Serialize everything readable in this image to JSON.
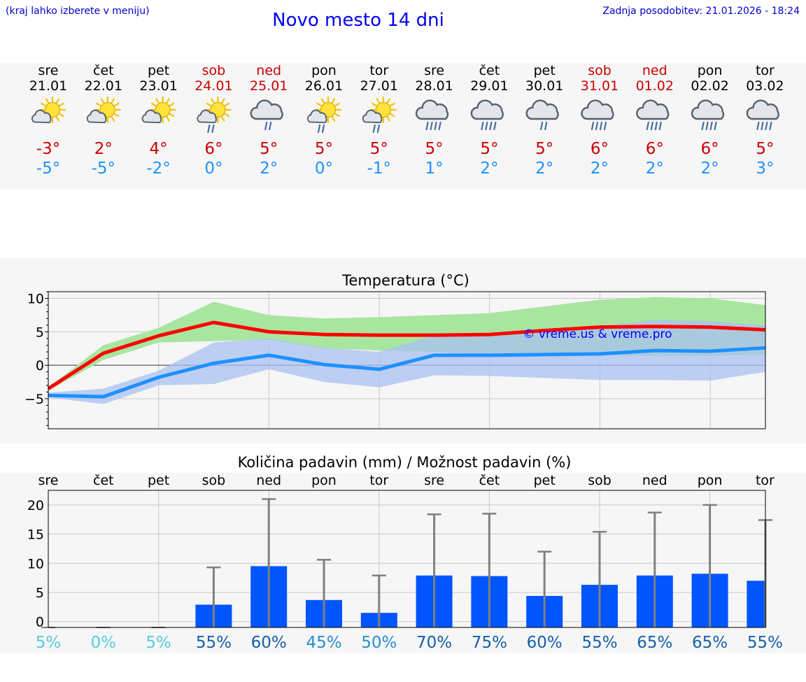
{
  "header": {
    "hint": "(kraj lahko izberete v meniju)",
    "title": "Novo mesto 14 dni",
    "updated": "Zadnja posodobitev: 21.01.2026 - 18:24"
  },
  "colors": {
    "weekday": "#000000",
    "weekend": "#cc0000",
    "tmax": "#cc0000",
    "tmin": "#1e90ff",
    "max_line": "#ff0000",
    "min_line": "#1e90ff",
    "max_band": "#a8e6a0",
    "min_band": "#a9c0f2",
    "overlap_band": "#7fc4a8",
    "bar": "#0055ff",
    "errbar": "#808080",
    "watermark": "#0000ff"
  },
  "days": [
    {
      "name": "sre",
      "date": "21.01",
      "weekend": false,
      "icon": "sun-cloud-icon",
      "tmax": "-3°",
      "tmin": "-5°"
    },
    {
      "name": "čet",
      "date": "22.01",
      "weekend": false,
      "icon": "sun-cloud-icon",
      "tmax": "2°",
      "tmin": "-5°"
    },
    {
      "name": "pet",
      "date": "23.01",
      "weekend": false,
      "icon": "sun-cloud-icon",
      "tmax": "4°",
      "tmin": "-2°"
    },
    {
      "name": "sob",
      "date": "24.01",
      "weekend": true,
      "icon": "sun-cloud-rain-icon",
      "tmax": "6°",
      "tmin": "0°"
    },
    {
      "name": "ned",
      "date": "25.01",
      "weekend": true,
      "icon": "cloud-rain-icon",
      "tmax": "5°",
      "tmin": "2°"
    },
    {
      "name": "pon",
      "date": "26.01",
      "weekend": false,
      "icon": "sun-cloud-rain-icon",
      "tmax": "5°",
      "tmin": "0°"
    },
    {
      "name": "tor",
      "date": "27.01",
      "weekend": false,
      "icon": "sun-cloud-rain-icon",
      "tmax": "5°",
      "tmin": "-1°"
    },
    {
      "name": "sre",
      "date": "28.01",
      "weekend": false,
      "icon": "cloud-heavy-rain-icon",
      "tmax": "5°",
      "tmin": "1°"
    },
    {
      "name": "čet",
      "date": "29.01",
      "weekend": false,
      "icon": "cloud-heavy-rain-icon",
      "tmax": "5°",
      "tmin": "2°"
    },
    {
      "name": "pet",
      "date": "30.01",
      "weekend": false,
      "icon": "cloud-rain-icon",
      "tmax": "5°",
      "tmin": "2°"
    },
    {
      "name": "sob",
      "date": "31.01",
      "weekend": true,
      "icon": "cloud-heavy-rain-icon",
      "tmax": "6°",
      "tmin": "2°"
    },
    {
      "name": "ned",
      "date": "01.02",
      "weekend": true,
      "icon": "cloud-heavy-rain-icon",
      "tmax": "6°",
      "tmin": "2°"
    },
    {
      "name": "pon",
      "date": "02.02",
      "weekend": false,
      "icon": "cloud-heavy-rain-icon",
      "tmax": "6°",
      "tmin": "2°"
    },
    {
      "name": "tor",
      "date": "03.02",
      "weekend": false,
      "icon": "cloud-heavy-rain-icon",
      "tmax": "5°",
      "tmin": "3°"
    }
  ],
  "chart_data": [
    {
      "type": "line",
      "title": "Temperatura (°C)",
      "watermark": "© vreme.us & vreme.pro",
      "ylim": [
        -9.5,
        11
      ],
      "yticks": [
        10,
        5,
        0,
        -5
      ],
      "ytick_labels": [
        "10",
        "5",
        "0",
        "−5"
      ],
      "x": [
        0,
        1,
        2,
        3,
        4,
        5,
        6,
        7,
        8,
        9,
        10,
        11,
        12,
        13
      ],
      "series": [
        {
          "name": "max",
          "values": [
            -3.5,
            1.8,
            4.4,
            6.4,
            5.0,
            4.6,
            4.5,
            4.5,
            4.6,
            5.2,
            5.7,
            5.8,
            5.7,
            5.3
          ]
        },
        {
          "name": "min",
          "values": [
            -4.5,
            -4.7,
            -1.8,
            0.3,
            1.5,
            0.1,
            -0.6,
            1.5,
            1.5,
            1.6,
            1.7,
            2.2,
            2.1,
            2.6
          ]
        }
      ],
      "bands": [
        {
          "name": "max_range",
          "low": [
            -3.8,
            0.8,
            3.4,
            3.6,
            3.8,
            2.5,
            2.2,
            2.0,
            1.6,
            1.6,
            1.5,
            1.4,
            1.4,
            1.6
          ],
          "high": [
            -3.3,
            3.0,
            5.6,
            9.5,
            7.5,
            7.0,
            7.2,
            7.5,
            7.8,
            8.8,
            9.8,
            10.2,
            10.0,
            9.0
          ]
        },
        {
          "name": "min_range",
          "low": [
            -4.8,
            -5.8,
            -3.0,
            -2.8,
            -0.6,
            -2.5,
            -3.3,
            -1.5,
            -1.6,
            -1.9,
            -2.2,
            -2.2,
            -2.3,
            -1.0
          ],
          "high": [
            -4.1,
            -3.5,
            -0.8,
            3.4,
            4.0,
            2.6,
            2.0,
            4.5,
            4.8,
            5.2,
            5.8,
            6.8,
            6.6,
            6.0
          ]
        }
      ]
    },
    {
      "type": "bar",
      "title": "Količina padavin (mm) / Možnost padavin (%)",
      "ylim": [
        -1,
        22.5
      ],
      "yticks": [
        20,
        15,
        10,
        5,
        0
      ],
      "ytick_labels": [
        "20",
        "15",
        "10",
        "5",
        "0"
      ],
      "categories": [
        "sre",
        "čet",
        "pet",
        "sob",
        "ned",
        "pon",
        "tor",
        "sre",
        "čet",
        "pet",
        "sob",
        "ned",
        "pon",
        "tor"
      ],
      "values": [
        0,
        0,
        0,
        2.9,
        9.5,
        3.7,
        1.5,
        7.9,
        7.8,
        4.4,
        6.3,
        7.9,
        8.2,
        7.0
      ],
      "error_high": [
        0,
        0,
        0,
        9.3,
        21.0,
        10.6,
        7.9,
        18.4,
        18.5,
        12.0,
        15.4,
        18.7,
        20.0,
        17.4
      ],
      "probability": [
        {
          "label": "5%",
          "color": "#55ccdd"
        },
        {
          "label": "0%",
          "color": "#55ccdd"
        },
        {
          "label": "5%",
          "color": "#55ccdd"
        },
        {
          "label": "55%",
          "color": "#1560a8"
        },
        {
          "label": "60%",
          "color": "#1560a8"
        },
        {
          "label": "45%",
          "color": "#2a8ccc"
        },
        {
          "label": "50%",
          "color": "#2a8ccc"
        },
        {
          "label": "70%",
          "color": "#1560a8"
        },
        {
          "label": "75%",
          "color": "#1560a8"
        },
        {
          "label": "60%",
          "color": "#1560a8"
        },
        {
          "label": "55%",
          "color": "#1560a8"
        },
        {
          "label": "65%",
          "color": "#1560a8"
        },
        {
          "label": "65%",
          "color": "#1560a8"
        },
        {
          "label": "55%",
          "color": "#1560a8"
        }
      ]
    }
  ]
}
